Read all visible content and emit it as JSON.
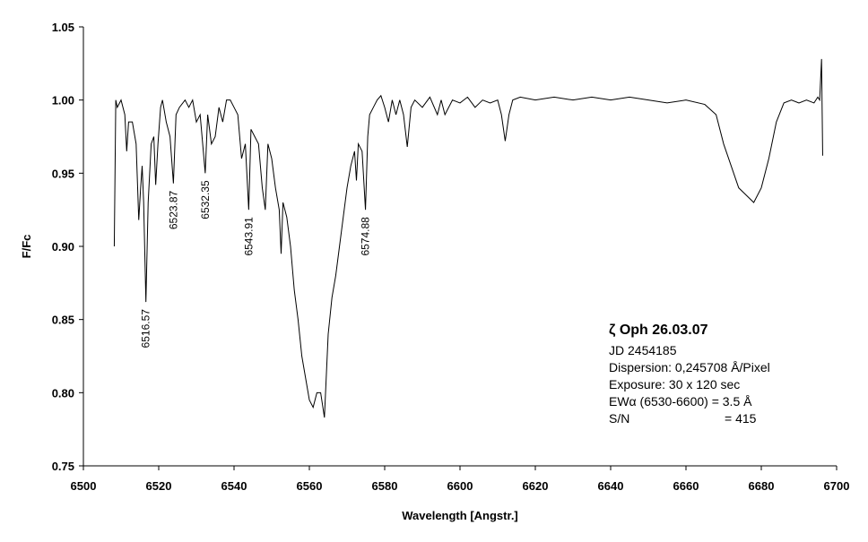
{
  "chart_data": {
    "type": "line",
    "x_label": "Wavelength [Angstr.]",
    "y_label": "F/Fc",
    "xlim": [
      6500,
      6700
    ],
    "xticks": [
      6500,
      6520,
      6540,
      6560,
      6580,
      6600,
      6620,
      6640,
      6660,
      6680,
      6700
    ],
    "ylim": [
      0.75,
      1.05
    ],
    "yticks": [
      {
        "value": 0.75,
        "label": "0.75"
      },
      {
        "value": 0.8,
        "label": "0.80"
      },
      0.85,
      {
        "value": 0.9,
        "label": "0.90"
      },
      0.95,
      {
        "value": 1,
        "label": "1.00"
      },
      1.05
    ],
    "grid": false,
    "series": [
      {
        "name": "ζ Oph 26.03.07",
        "color": "#000000",
        "x": [
          6508.2,
          6508.6,
          6509,
          6510,
          6511,
          6511.5,
          6512,
          6513,
          6514,
          6514.7,
          6515.2,
          6515.6,
          6516,
          6516.6,
          6517.2,
          6518,
          6518.7,
          6519.2,
          6519.8,
          6520.5,
          6521,
          6522,
          6523,
          6523.9,
          6524.6,
          6525.5,
          6527,
          6528,
          6529,
          6530,
          6531,
          6532.35,
          6533,
          6534,
          6535,
          6536,
          6537,
          6538,
          6539,
          6540,
          6541,
          6542,
          6543,
          6543.9,
          6544.5,
          6545.5,
          6546.5,
          6547.5,
          6548.3,
          6549,
          6550,
          6551,
          6552,
          6552.5,
          6553,
          6554,
          6555,
          6556,
          6557,
          6558,
          6559,
          6560,
          6561,
          6562,
          6563,
          6564,
          6565,
          6566,
          6567,
          6568,
          6569,
          6570,
          6571,
          6572,
          6572.5,
          6573,
          6574,
          6574.9,
          6575.5,
          6576,
          6577,
          6578,
          6579,
          6580,
          6581,
          6582,
          6583,
          6584,
          6585,
          6586,
          6587,
          6588,
          6590,
          6592,
          6594,
          6595,
          6596,
          6598,
          6600,
          6602,
          6604,
          6606,
          6608,
          6610,
          6611,
          6612,
          6613,
          6614,
          6616,
          6620,
          6625,
          6630,
          6635,
          6640,
          6645,
          6650,
          6655,
          6660,
          6665,
          6668,
          6670,
          6672,
          6674,
          6676,
          6678,
          6680,
          6682,
          6684,
          6686,
          6688,
          6690,
          6692,
          6694,
          6695,
          6695.5,
          6696,
          6696.3
        ],
        "values": [
          0.9,
          1.0,
          0.995,
          1.0,
          0.99,
          0.965,
          0.985,
          0.985,
          0.97,
          0.918,
          0.94,
          0.955,
          0.93,
          0.862,
          0.93,
          0.97,
          0.975,
          0.942,
          0.97,
          0.995,
          1.0,
          0.985,
          0.975,
          0.943,
          0.99,
          0.995,
          1.0,
          0.995,
          1.0,
          0.985,
          0.99,
          0.95,
          0.99,
          0.97,
          0.975,
          0.995,
          0.985,
          1.0,
          1.0,
          0.995,
          0.99,
          0.96,
          0.97,
          0.925,
          0.98,
          0.975,
          0.97,
          0.94,
          0.925,
          0.97,
          0.96,
          0.94,
          0.925,
          0.895,
          0.93,
          0.92,
          0.9,
          0.87,
          0.85,
          0.825,
          0.81,
          0.795,
          0.79,
          0.8,
          0.8,
          0.783,
          0.84,
          0.865,
          0.88,
          0.9,
          0.92,
          0.94,
          0.955,
          0.965,
          0.945,
          0.97,
          0.965,
          0.925,
          0.975,
          0.99,
          0.995,
          1.0,
          1.003,
          0.995,
          0.985,
          1.0,
          0.99,
          1.0,
          0.99,
          0.968,
          0.995,
          1.0,
          0.995,
          1.002,
          0.99,
          1.0,
          0.99,
          1.0,
          0.998,
          1.002,
          0.995,
          1.0,
          0.998,
          1.0,
          0.99,
          0.972,
          0.99,
          1.0,
          1.002,
          1.0,
          1.002,
          1.0,
          1.002,
          1.0,
          1.002,
          1.0,
          0.998,
          1.0,
          0.997,
          0.99,
          0.97,
          0.955,
          0.94,
          0.935,
          0.93,
          0.94,
          0.96,
          0.985,
          0.998,
          1.0,
          0.998,
          1.0,
          0.998,
          1.002,
          1.0,
          1.028,
          0.962
        ]
      }
    ],
    "annotations": [
      {
        "text": "6516.57",
        "x": 6516.57,
        "y": 0.862
      },
      {
        "text": "6523.87",
        "x": 6523.87,
        "y": 0.943
      },
      {
        "text": "6532.35",
        "x": 6532.35,
        "y": 0.95
      },
      {
        "text": "6543.91",
        "x": 6543.91,
        "y": 0.925
      },
      {
        "text": "6574.88",
        "x": 6574.88,
        "y": 0.925
      }
    ],
    "info_title": "ζ Oph 26.03.07",
    "info_lines": [
      "JD 2454185",
      "Dispersion: 0,245708 Å/Pixel",
      "Exposure: 30 x 120 sec",
      "EWα (6530-6600) = 3.5 Å"
    ],
    "info_sn": [
      "S/N",
      "= 415"
    ]
  }
}
